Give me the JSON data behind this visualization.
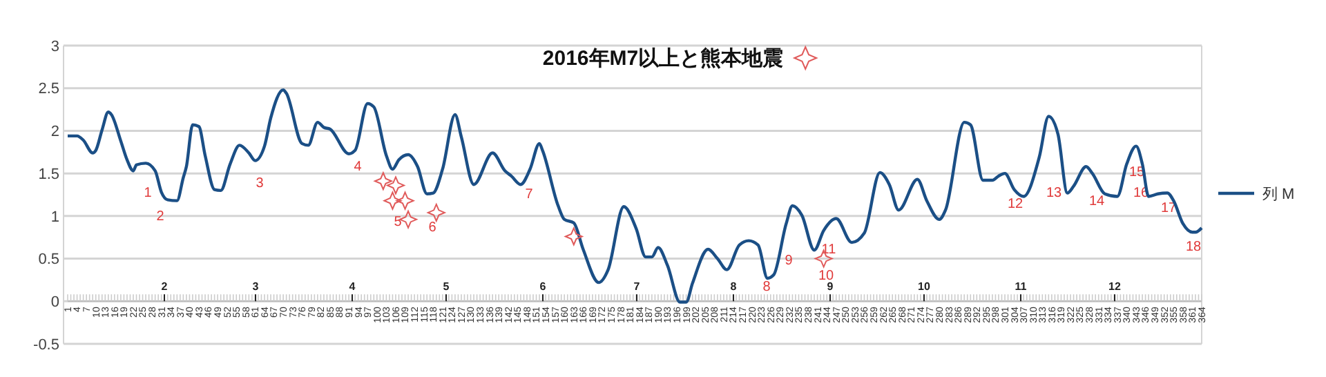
{
  "chart_data": {
    "type": "line",
    "title": "2016年M7以上と熊本地震",
    "legend": "right",
    "grid": "y",
    "line_style": "solid",
    "marker": "none",
    "xlim": [
      1,
      364
    ],
    "ylim": [
      -0.5,
      3
    ],
    "yticks": [
      -0.5,
      0,
      0.5,
      1,
      1.5,
      2,
      2.5,
      3
    ],
    "xticks": [
      1,
      4,
      7,
      10,
      13,
      16,
      19,
      22,
      25,
      28,
      31,
      34,
      37,
      40,
      43,
      46,
      49,
      52,
      55,
      58,
      61,
      64,
      67,
      70,
      73,
      76,
      79,
      82,
      85,
      88,
      91,
      94,
      97,
      100,
      103,
      106,
      109,
      112,
      115,
      118,
      121,
      124,
      127,
      130,
      133,
      136,
      139,
      142,
      145,
      148,
      151,
      154,
      157,
      160,
      163,
      166,
      169,
      172,
      175,
      178,
      181,
      184,
      187,
      190,
      193,
      196,
      199,
      202,
      205,
      208,
      211,
      214,
      217,
      220,
      223,
      226,
      229,
      232,
      235,
      238,
      241,
      244,
      247,
      250,
      253,
      256,
      259,
      262,
      265,
      268,
      271,
      274,
      277,
      280,
      283,
      286,
      289,
      292,
      295,
      298,
      301,
      304,
      307,
      310,
      313,
      316,
      319,
      322,
      325,
      328,
      331,
      334,
      337,
      340,
      343,
      346,
      349,
      352,
      355,
      358,
      361,
      364
    ],
    "series": [
      {
        "name": "列 M",
        "color": "#1b4f86",
        "x": [
          1,
          4,
          6,
          9,
          10,
          12,
          14,
          15,
          18,
          20,
          22,
          23,
          26,
          29,
          31,
          33,
          36,
          38,
          39,
          41,
          43,
          45,
          48,
          50,
          53,
          56,
          59,
          61,
          64,
          66,
          70,
          71,
          76,
          78,
          81,
          83,
          85,
          91,
          93,
          97,
          99,
          103,
          105,
          107,
          110,
          113,
          116,
          118,
          121,
          125,
          127,
          131,
          137,
          141,
          143,
          146,
          149,
          152,
          153,
          158,
          160,
          163,
          166,
          171,
          174,
          179,
          183,
          186,
          188,
          190,
          193,
          197,
          199,
          201,
          206,
          209,
          212,
          216,
          219,
          222,
          225,
          227,
          231,
          233,
          236,
          240,
          243,
          247,
          252,
          256,
          261,
          264,
          267,
          273,
          276,
          280,
          282,
          288,
          290,
          294,
          297,
          299,
          301,
          304,
          307,
          312,
          315,
          318,
          321,
          323,
          327,
          329,
          333,
          337,
          340,
          343,
          345,
          347,
          350,
          353,
          355,
          358,
          361,
          362,
          364
        ],
        "values": [
          1.94,
          1.94,
          1.89,
          1.74,
          1.77,
          2.01,
          2.22,
          2.19,
          1.88,
          1.66,
          1.53,
          1.6,
          1.62,
          1.53,
          1.28,
          1.19,
          1.18,
          1.45,
          1.58,
          2.07,
          2.05,
          1.71,
          1.31,
          1.3,
          1.61,
          1.83,
          1.74,
          1.65,
          1.82,
          2.15,
          2.48,
          2.44,
          1.85,
          1.83,
          2.1,
          2.04,
          2.02,
          1.73,
          1.77,
          2.32,
          2.28,
          1.71,
          1.55,
          1.66,
          1.72,
          1.58,
          1.26,
          1.27,
          1.55,
          2.19,
          1.93,
          1.37,
          1.74,
          1.53,
          1.47,
          1.37,
          1.55,
          1.85,
          1.77,
          1.12,
          0.96,
          0.92,
          0.61,
          0.22,
          0.37,
          1.11,
          0.85,
          0.52,
          0.52,
          0.63,
          0.42,
          -0.01,
          -0.01,
          0.21,
          0.61,
          0.5,
          0.37,
          0.66,
          0.71,
          0.66,
          0.27,
          0.31,
          0.91,
          1.12,
          1.01,
          0.6,
          0.83,
          0.97,
          0.69,
          0.8,
          1.51,
          1.37,
          1.07,
          1.43,
          1.18,
          0.96,
          1.07,
          2.1,
          2.07,
          1.42,
          1.42,
          1.47,
          1.5,
          1.31,
          1.23,
          1.69,
          2.17,
          1.96,
          1.27,
          1.35,
          1.58,
          1.5,
          1.26,
          1.23,
          1.61,
          1.82,
          1.61,
          1.23,
          1.26,
          1.27,
          1.18,
          0.91,
          0.81,
          0.81,
          0.86
        ]
      },
      {
        "type": "scatter",
        "marker": "star",
        "color": "#e05a5a",
        "x": [
          102,
          106,
          105,
          109,
          110,
          119,
          163,
          243
        ],
        "values": [
          1.41,
          1.36,
          1.18,
          1.18,
          0.96,
          1.04,
          0.76,
          0.5
        ]
      }
    ],
    "annotations": [
      "1",
      "2",
      "3",
      "4",
      "5",
      "6",
      "7",
      "8",
      "9",
      "10",
      "11",
      "12",
      "13",
      "14",
      "15",
      "16",
      "17",
      "18",
      "2",
      "3",
      "4",
      "5",
      "6",
      "7",
      "8",
      "9",
      "10",
      "11",
      "12"
    ]
  }
}
